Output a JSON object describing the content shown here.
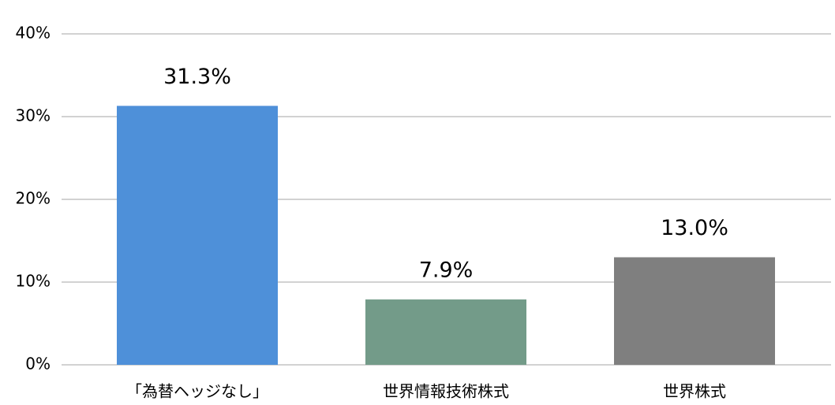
{
  "chart_data": {
    "type": "bar",
    "categories": [
      "「為替ヘッジなし」",
      "世界情報技術株式",
      "世界株式"
    ],
    "values": [
      31.3,
      7.9,
      13.0
    ],
    "value_labels": [
      "31.3%",
      "7.9%",
      "13.0%"
    ],
    "colors": [
      "#4e90d9",
      "#739b89",
      "#7f7f7f"
    ],
    "ylim": [
      0,
      40
    ],
    "yticks": [
      {
        "value": 0,
        "label": "0%"
      },
      {
        "value": 10,
        "label": "10%"
      },
      {
        "value": 20,
        "label": "20%"
      },
      {
        "value": 30,
        "label": "30%"
      },
      {
        "value": 40,
        "label": "40%"
      }
    ],
    "grid": true
  }
}
